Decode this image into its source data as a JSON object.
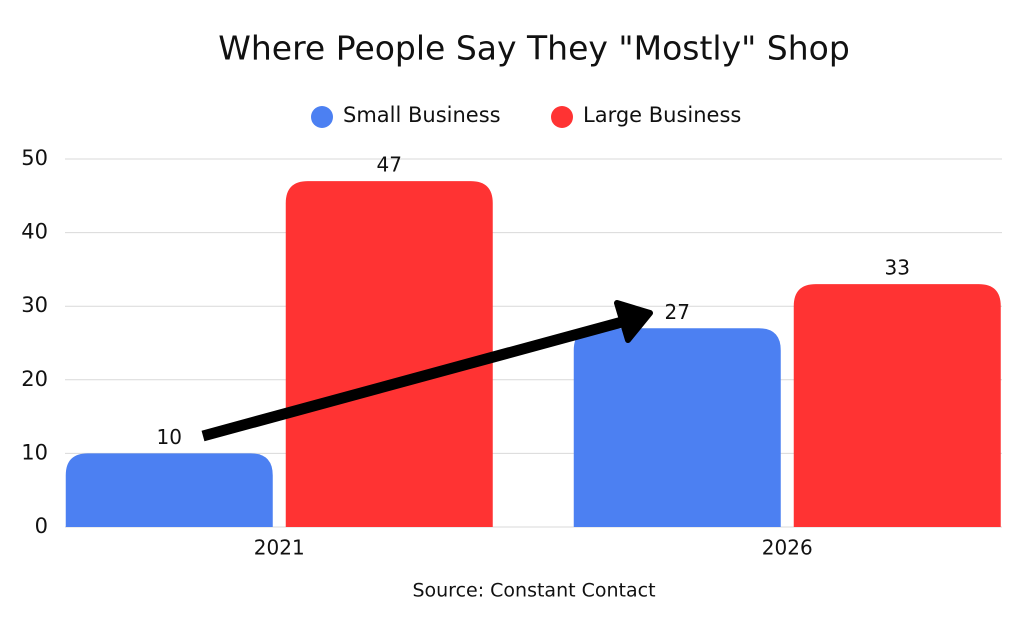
{
  "chart_data": {
    "type": "bar",
    "title": "Where People Say They \"Mostly\" Shop",
    "categories": [
      "2021",
      "2026"
    ],
    "series": [
      {
        "name": "Small Business",
        "color": "#4c80f2",
        "values": [
          10,
          27
        ]
      },
      {
        "name": "Large Business",
        "color": "#ff3333",
        "values": [
          47,
          33
        ]
      }
    ],
    "ylim": [
      0,
      50
    ],
    "yticks": [
      0,
      10,
      20,
      30,
      40,
      50
    ],
    "grid": true,
    "legend": "top",
    "source": "Source: Constant Contact"
  }
}
